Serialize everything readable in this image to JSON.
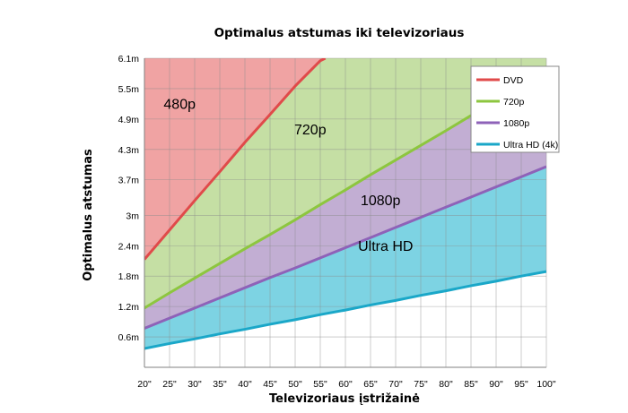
{
  "chart_data": {
    "type": "area",
    "title": "Optimalus atstumas iki televizoriaus",
    "xlabel": "Televizoriaus įstrižainė",
    "ylabel": "Optimalus atstumas",
    "categories": [
      "20\"",
      "25\"",
      "30\"",
      "35\"",
      "40\"",
      "45\"",
      "50\"",
      "55\"",
      "60\"",
      "65\"",
      "70\"",
      "75\"",
      "80\"",
      "85\"",
      "90\"",
      "95\"",
      "100\""
    ],
    "x": [
      20,
      25,
      30,
      35,
      40,
      45,
      50,
      55,
      60,
      65,
      70,
      75,
      80,
      85,
      90,
      95,
      100
    ],
    "y_ticks": [
      {
        "value": 0.6,
        "label": "0.6m"
      },
      {
        "value": 1.2,
        "label": "1.2m"
      },
      {
        "value": 1.8,
        "label": "1.8m"
      },
      {
        "value": 2.4,
        "label": "2.4m"
      },
      {
        "value": 3.0,
        "label": "3m"
      },
      {
        "value": 3.7,
        "label": "3.7m"
      },
      {
        "value": 4.3,
        "label": "4.3m"
      },
      {
        "value": 4.9,
        "label": "4.9m"
      },
      {
        "value": 5.5,
        "label": "5.5m"
      },
      {
        "value": 6.1,
        "label": "6.1m"
      }
    ],
    "ylim": [
      0,
      6.1
    ],
    "grid": true,
    "legend_position": "top-right",
    "series": [
      {
        "name": "DVD",
        "color": "#e04a4a",
        "fill": "#f0a3a3",
        "x": [
          20,
          25,
          30,
          35,
          40,
          45,
          50,
          55,
          56
        ],
        "values": [
          2.13,
          2.71,
          3.29,
          3.86,
          4.44,
          4.99,
          5.55,
          6.05,
          6.1
        ]
      },
      {
        "name": "720p",
        "color": "#8dc63f",
        "fill": "#c5dfa4",
        "x": [
          20,
          25,
          30,
          35,
          40,
          45,
          50,
          55,
          60,
          65,
          70,
          75,
          80,
          85
        ],
        "values": [
          1.17,
          1.47,
          1.76,
          2.05,
          2.34,
          2.62,
          2.91,
          3.21,
          3.5,
          3.8,
          4.09,
          4.38,
          4.67,
          4.97
        ]
      },
      {
        "name": "1080p",
        "color": "#8e62b8",
        "fill": "#c2aed3",
        "x": [
          20,
          25,
          30,
          35,
          40,
          45,
          50,
          55,
          60,
          65,
          70,
          75,
          80,
          85,
          90,
          95,
          100
        ],
        "values": [
          0.77,
          0.97,
          1.17,
          1.37,
          1.57,
          1.77,
          1.96,
          2.16,
          2.36,
          2.56,
          2.76,
          2.96,
          3.16,
          3.36,
          3.56,
          3.76,
          3.96
        ]
      },
      {
        "name": "Ultra HD (4k)",
        "color": "#1aa7c8",
        "fill": "#7dd3e3",
        "x": [
          20,
          25,
          30,
          35,
          40,
          45,
          50,
          55,
          60,
          65,
          70,
          75,
          80,
          85,
          90,
          95,
          100
        ],
        "values": [
          0.37,
          0.47,
          0.56,
          0.66,
          0.75,
          0.85,
          0.94,
          1.04,
          1.13,
          1.23,
          1.32,
          1.42,
          1.51,
          1.61,
          1.7,
          1.8,
          1.89
        ]
      }
    ],
    "annotations": [
      {
        "text": "480p",
        "x": 27,
        "y": 5.1
      },
      {
        "text": "720p",
        "x": 53,
        "y": 4.6
      },
      {
        "text": "1080p",
        "x": 67,
        "y": 3.2
      },
      {
        "text": "Ultra HD",
        "x": 68,
        "y": 2.3
      }
    ]
  }
}
